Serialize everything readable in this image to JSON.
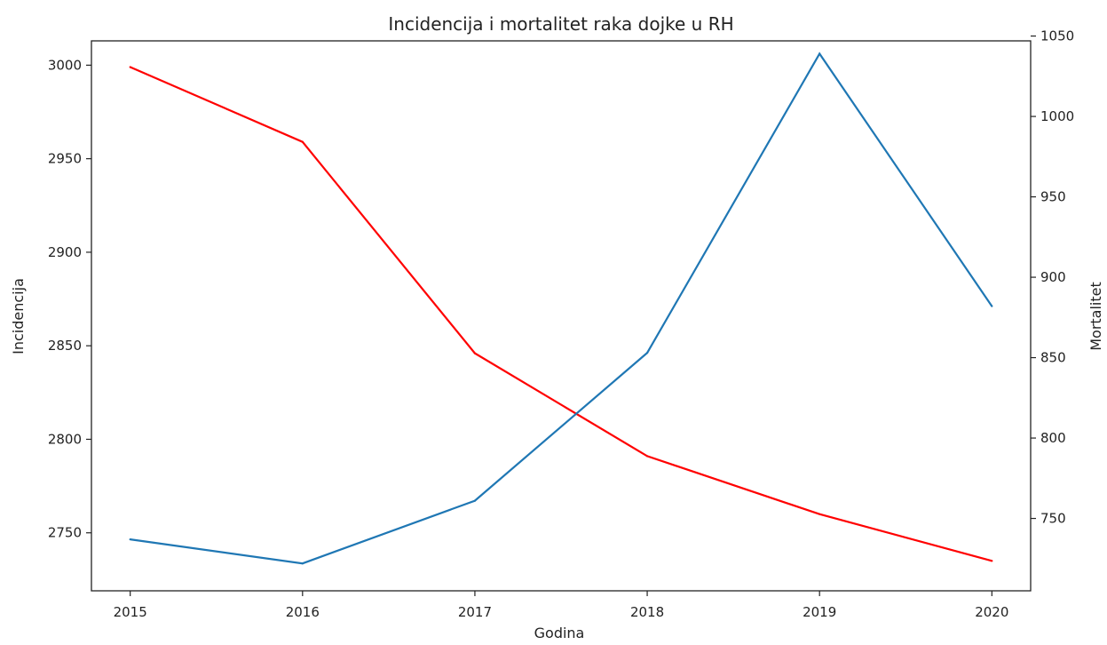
{
  "chart_data": {
    "type": "line",
    "title": "Incidencija i mortalitet raka dojke u RH",
    "xlabel": "Godina",
    "ylabel_left": "Incidencija",
    "ylabel_right": "Mortalitet",
    "x": [
      2015,
      2016,
      2017,
      2018,
      2019,
      2020
    ],
    "x_ticks": [
      "2015",
      "2016",
      "2017",
      "2018",
      "2019",
      "2020"
    ],
    "y_left_ticks": [
      "2750",
      "2800",
      "2850",
      "2900",
      "2950",
      "3000"
    ],
    "y_right_ticks": [
      "750",
      "800",
      "850",
      "900",
      "950",
      "1000",
      "1050"
    ],
    "ylim_left": [
      2719,
      3013
    ],
    "ylim_right": [
      705,
      1047
    ],
    "grid": false,
    "series": [
      {
        "axis": "left",
        "color": "#ff0000",
        "values": [
          2999,
          2959,
          2846,
          2791,
          2760,
          2735
        ]
      },
      {
        "axis": "right",
        "color": "#1f77b4",
        "values": [
          737,
          722,
          761,
          853,
          1039,
          882
        ]
      }
    ]
  }
}
